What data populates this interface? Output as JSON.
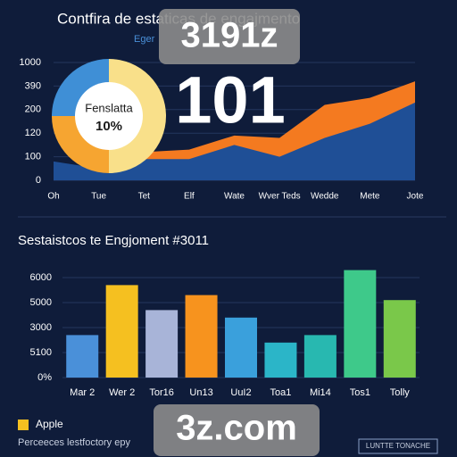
{
  "header": {
    "title": "Contfira de estaticas de engajmento",
    "subtitle": "Eger"
  },
  "watermarks": [
    "3191z",
    "3z.com"
  ],
  "chart_data": [
    {
      "type": "area",
      "headline": "101",
      "categories": [
        "Oh",
        "Tue",
        "Tet",
        "Elf",
        "Wate",
        "Wver Teds",
        "Wedde",
        "Mete",
        "Jote"
      ],
      "ylim": [
        0,
        5
      ],
      "yticks": [
        {
          "value": 0,
          "label": "0"
        },
        {
          "value": 1,
          "label": "100"
        },
        {
          "value": 2,
          "label": "120"
        },
        {
          "value": 3,
          "label": "200"
        },
        {
          "value": 4,
          "label": "390"
        },
        {
          "value": 5,
          "label": "1000"
        }
      ],
      "grid": true,
      "series": [
        {
          "color": "#f47a20",
          "values": [
            0.2,
            0.6,
            1.2,
            1.3,
            1.9,
            1.8,
            3.2,
            3.5,
            4.2
          ]
        },
        {
          "color": "#1f4f96",
          "values": [
            0.8,
            0.5,
            0.9,
            0.9,
            1.5,
            1.0,
            1.8,
            2.4,
            3.3
          ]
        }
      ]
    },
    {
      "type": "pie",
      "title": "Fenslatta",
      "center_label": "10%",
      "values": [
        50,
        25,
        25
      ],
      "colors": [
        "#f9e08a",
        "#f6a531",
        "#3f8fd6"
      ]
    },
    {
      "type": "bar",
      "title": "Sestaistcos te Engjoment #3011",
      "categories": [
        "Mar 2",
        "Wer 2",
        "Tor16",
        "Un13",
        "UuI2",
        "Toa1",
        "Mi14",
        "Tos1",
        "Tolly"
      ],
      "ylim": [
        0,
        4.5
      ],
      "yticks": [
        {
          "value": 0,
          "label": "0%"
        },
        {
          "value": 1,
          "label": "5100"
        },
        {
          "value": 2,
          "label": "3000"
        },
        {
          "value": 3,
          "label": "5000"
        },
        {
          "value": 4,
          "label": "6000"
        }
      ],
      "series": [
        {
          "name": "Apple",
          "color": "#f5c020",
          "values": [
            1.7,
            3.7,
            2.7,
            3.3,
            2.4,
            1.4,
            1.7,
            4.3,
            3.1
          ]
        }
      ],
      "colors": [
        "#4a90d9",
        "#f5c020",
        "#a8b4d8",
        "#f7931e",
        "#3aa0dc",
        "#2bb5c8",
        "#28b8b0",
        "#3ec98a",
        "#7ac84a"
      ]
    }
  ],
  "footer": {
    "note": "Perceeces lestfoctory epy",
    "badge": "LUNTTE TONACHE"
  }
}
